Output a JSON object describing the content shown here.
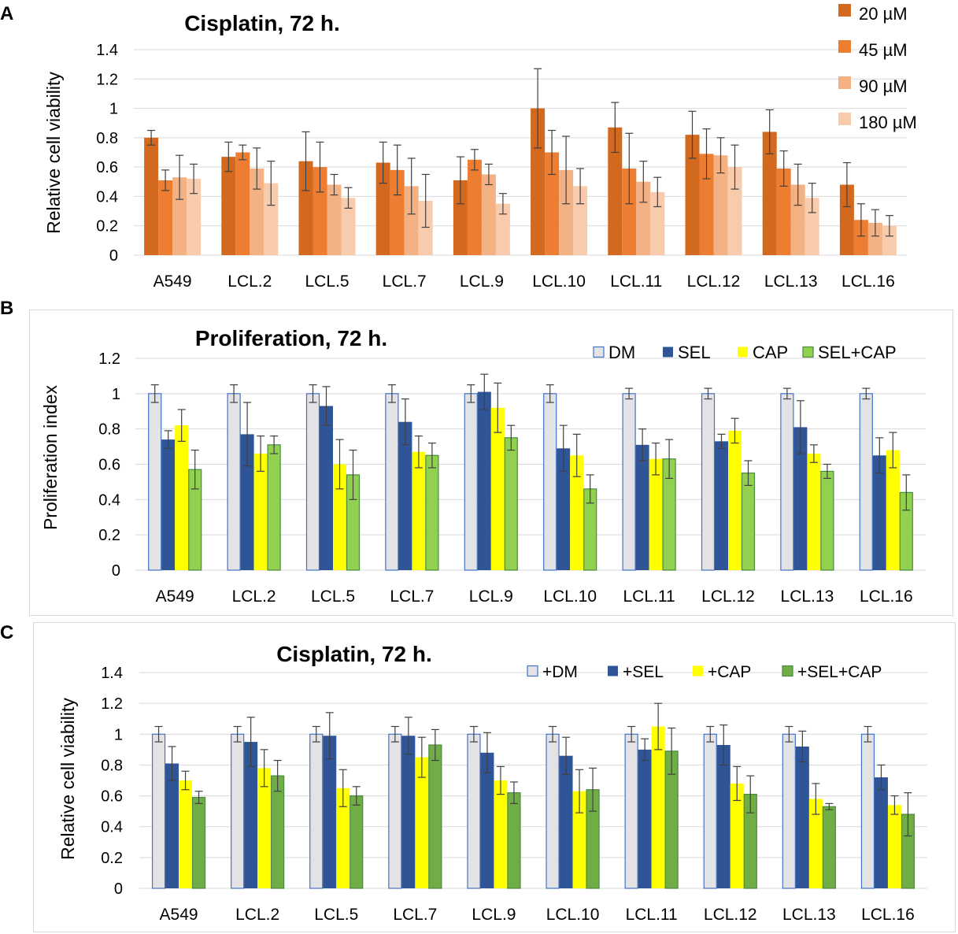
{
  "panel_letters": {
    "a": "A",
    "b": "B",
    "c": "C"
  },
  "chart_data": [
    {
      "id": "A",
      "type": "bar",
      "title": "Cisplatin, 72 h.",
      "xlabel": "",
      "ylabel": "Relative  cell viability",
      "ylim": [
        0,
        1.4
      ],
      "yticks": [
        0,
        0.2,
        0.4,
        0.6,
        0.8,
        1,
        1.2,
        1.4
      ],
      "ytick_labels": [
        "0",
        "0.2",
        "0.4",
        "0.6",
        "0.8",
        "1",
        "1.2",
        "1.4"
      ],
      "grid": true,
      "legend_position": "top-right",
      "categories": [
        "A549",
        "LCL.2",
        "LCL.5",
        "LCL.7",
        "LCL.9",
        "LCL.10",
        "LCL.11",
        "LCL.12",
        "LCL.13",
        "LCL.16"
      ],
      "series": [
        {
          "name": "20 µM",
          "color": "#d2691e",
          "stroke": "#d2691e",
          "values": [
            0.8,
            0.67,
            0.64,
            0.63,
            0.51,
            1.0,
            0.87,
            0.82,
            0.84,
            0.48
          ],
          "errors": [
            0.05,
            0.1,
            0.2,
            0.14,
            0.16,
            0.27,
            0.17,
            0.16,
            0.15,
            0.15
          ]
        },
        {
          "name": "45 µM",
          "color": "#ed7d31",
          "stroke": "#ed7d31",
          "values": [
            0.51,
            0.7,
            0.6,
            0.58,
            0.65,
            0.7,
            0.59,
            0.69,
            0.59,
            0.24
          ],
          "errors": [
            0.07,
            0.05,
            0.17,
            0.17,
            0.07,
            0.15,
            0.24,
            0.17,
            0.12,
            0.11
          ]
        },
        {
          "name": "90 µM",
          "color": "#f4b183",
          "stroke": "#f4b183",
          "values": [
            0.53,
            0.59,
            0.48,
            0.47,
            0.55,
            0.58,
            0.5,
            0.68,
            0.48,
            0.22
          ],
          "errors": [
            0.15,
            0.14,
            0.07,
            0.19,
            0.07,
            0.23,
            0.14,
            0.12,
            0.14,
            0.09
          ]
        },
        {
          "name": "180 µM",
          "color": "#f8cbad",
          "stroke": "#f8cbad",
          "values": [
            0.52,
            0.49,
            0.39,
            0.37,
            0.35,
            0.47,
            0.43,
            0.6,
            0.39,
            0.2
          ],
          "errors": [
            0.1,
            0.15,
            0.07,
            0.18,
            0.07,
            0.12,
            0.1,
            0.15,
            0.1,
            0.07
          ]
        }
      ]
    },
    {
      "id": "B",
      "type": "bar",
      "title": "Proliferation, 72 h.",
      "xlabel": "",
      "ylabel": "Proliferation  index",
      "ylim": [
        0,
        1.2
      ],
      "yticks": [
        0,
        0.2,
        0.4,
        0.6,
        0.8,
        1,
        1.2
      ],
      "ytick_labels": [
        "0",
        "0.2",
        "0.4",
        "0.6",
        "0.8",
        "1",
        "1.2"
      ],
      "grid": true,
      "legend_position": "top-right",
      "categories": [
        "A549",
        "LCL.2",
        "LCL.5",
        "LCL.7",
        "LCL.9",
        "LCL.10",
        "LCL.11",
        "LCL.12",
        "LCL.13",
        "LCL.16"
      ],
      "series": [
        {
          "name": "DM",
          "color": "#e3e3e6",
          "stroke": "#4472c4",
          "values": [
            1.0,
            1.0,
            1.0,
            1.0,
            1.0,
            1.0,
            1.0,
            1.0,
            1.0,
            1.0
          ],
          "errors": [
            0.05,
            0.05,
            0.05,
            0.05,
            0.05,
            0.05,
            0.03,
            0.03,
            0.03,
            0.03
          ]
        },
        {
          "name": "SEL",
          "color": "#2f5597",
          "stroke": "#2f5597",
          "values": [
            0.74,
            0.77,
            0.93,
            0.84,
            1.01,
            0.69,
            0.71,
            0.73,
            0.81,
            0.65
          ],
          "errors": [
            0.05,
            0.18,
            0.11,
            0.13,
            0.1,
            0.13,
            0.09,
            0.04,
            0.15,
            0.1
          ]
        },
        {
          "name": "CAP",
          "color": "#ffff00",
          "stroke": "#ffff00",
          "values": [
            0.82,
            0.66,
            0.6,
            0.67,
            0.92,
            0.65,
            0.63,
            0.79,
            0.66,
            0.68
          ],
          "errors": [
            0.09,
            0.1,
            0.14,
            0.09,
            0.14,
            0.12,
            0.09,
            0.07,
            0.05,
            0.1
          ]
        },
        {
          "name": "SEL+CAP",
          "color": "#92d050",
          "stroke": "#4a8b3f",
          "values": [
            0.57,
            0.71,
            0.54,
            0.65,
            0.75,
            0.46,
            0.63,
            0.55,
            0.56,
            0.44
          ],
          "errors": [
            0.11,
            0.05,
            0.14,
            0.07,
            0.07,
            0.08,
            0.11,
            0.07,
            0.04,
            0.1
          ]
        }
      ]
    },
    {
      "id": "C",
      "type": "bar",
      "title": "Cisplatin, 72 h.",
      "xlabel": "",
      "ylabel": "Relative  cell viability",
      "ylim": [
        0,
        1.4
      ],
      "yticks": [
        0,
        0.2,
        0.4,
        0.6,
        0.8,
        1,
        1.2,
        1.4
      ],
      "ytick_labels": [
        "0",
        "0.2",
        "0.4",
        "0.6",
        "0.8",
        "1",
        "1.2",
        "1.4"
      ],
      "grid": true,
      "legend_position": "top-right",
      "categories": [
        "A549",
        "LCL.2",
        "LCL.5",
        "LCL.7",
        "LCL.9",
        "LCL.10",
        "LCL.11",
        "LCL.12",
        "LCL.13",
        "LCL.16"
      ],
      "series": [
        {
          "name": "+DM",
          "color": "#e3e3e6",
          "stroke": "#4472c4",
          "values": [
            1.0,
            1.0,
            1.0,
            1.0,
            1.0,
            1.0,
            1.0,
            1.0,
            1.0,
            1.0
          ],
          "errors": [
            0.05,
            0.05,
            0.05,
            0.05,
            0.05,
            0.05,
            0.05,
            0.05,
            0.05,
            0.05
          ]
        },
        {
          "name": "+SEL",
          "color": "#2f5597",
          "stroke": "#2f5597",
          "values": [
            0.81,
            0.95,
            0.99,
            0.99,
            0.88,
            0.86,
            0.9,
            0.93,
            0.92,
            0.72
          ],
          "errors": [
            0.11,
            0.16,
            0.15,
            0.12,
            0.13,
            0.12,
            0.07,
            0.13,
            0.1,
            0.08
          ]
        },
        {
          "name": "+CAP",
          "color": "#ffff00",
          "stroke": "#ffff00",
          "values": [
            0.7,
            0.78,
            0.65,
            0.85,
            0.7,
            0.63,
            1.05,
            0.68,
            0.58,
            0.54
          ],
          "errors": [
            0.06,
            0.12,
            0.12,
            0.13,
            0.09,
            0.14,
            0.15,
            0.11,
            0.1,
            0.06
          ]
        },
        {
          "name": "+SEL+CAP",
          "color": "#70ad47",
          "stroke": "#4a8b3f",
          "values": [
            0.59,
            0.73,
            0.6,
            0.93,
            0.62,
            0.64,
            0.89,
            0.61,
            0.53,
            0.48
          ],
          "errors": [
            0.04,
            0.1,
            0.06,
            0.1,
            0.07,
            0.14,
            0.15,
            0.12,
            0.02,
            0.14
          ]
        }
      ]
    }
  ]
}
